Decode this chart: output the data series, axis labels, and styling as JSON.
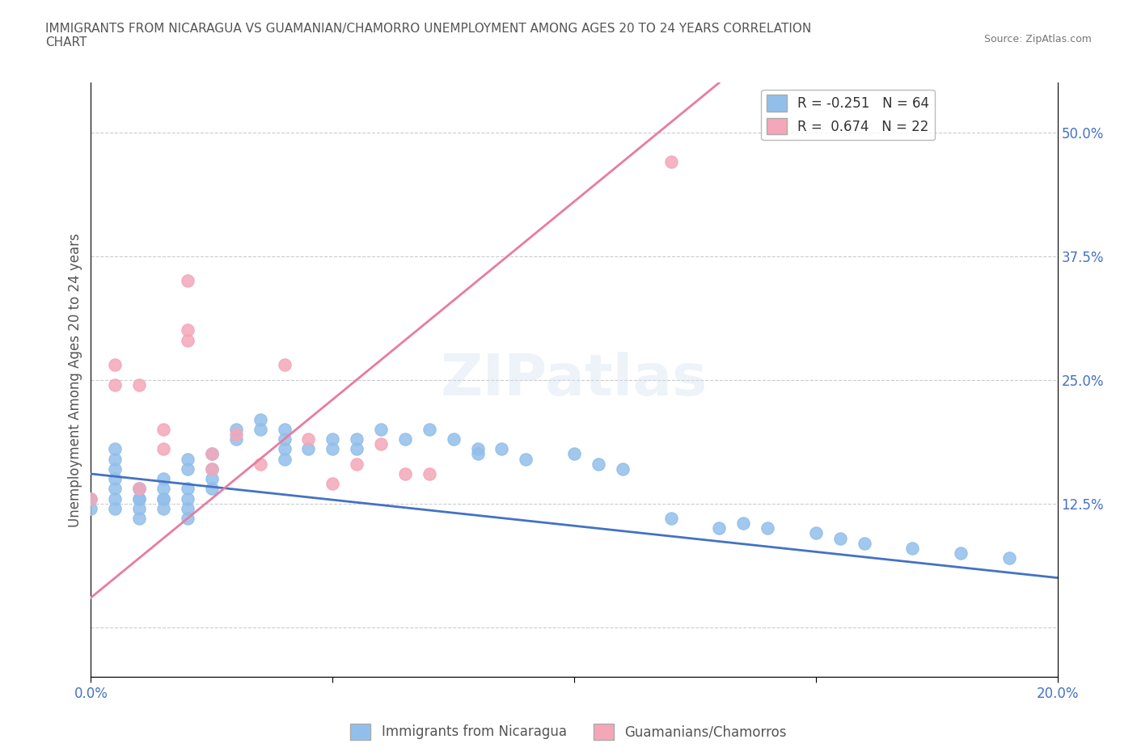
{
  "title": "IMMIGRANTS FROM NICARAGUA VS GUAMANIAN/CHAMORRO UNEMPLOYMENT AMONG AGES 20 TO 24 YEARS CORRELATION\nCHART",
  "source_text": "Source: ZipAtlas.com",
  "ylabel": "Unemployment Among Ages 20 to 24 years",
  "xlabel": "",
  "xlim": [
    0.0,
    0.2
  ],
  "ylim": [
    -0.05,
    0.55
  ],
  "yticks": [
    0.0,
    0.125,
    0.25,
    0.375,
    0.5
  ],
  "ytick_labels": [
    "",
    "12.5%",
    "25.0%",
    "37.5%",
    "50.0%"
  ],
  "xticks": [
    0.0,
    0.05,
    0.1,
    0.15,
    0.2
  ],
  "xtick_labels": [
    "0.0%",
    "",
    "",
    "",
    "20.0%"
  ],
  "blue_R": -0.251,
  "blue_N": 64,
  "pink_R": 0.674,
  "pink_N": 22,
  "blue_color": "#92BFEA",
  "pink_color": "#F4A7B9",
  "blue_line_color": "#4472C4",
  "pink_line_color": "#E87CA0",
  "legend_blue_label": "R = -0.251   N = 64",
  "legend_pink_label": "R =  0.674   N = 22",
  "watermark": "ZIPatlas",
  "blue_scatter_x": [
    0.0,
    0.0,
    0.01,
    0.01,
    0.01,
    0.01,
    0.015,
    0.015,
    0.015,
    0.02,
    0.02,
    0.02,
    0.02,
    0.025,
    0.025,
    0.025,
    0.03,
    0.03,
    0.035,
    0.035,
    0.04,
    0.04,
    0.04,
    0.04,
    0.045,
    0.05,
    0.05,
    0.055,
    0.055,
    0.06,
    0.065,
    0.07,
    0.075,
    0.08,
    0.08,
    0.085,
    0.09,
    0.1,
    0.105,
    0.11,
    0.12,
    0.13,
    0.135,
    0.14,
    0.15,
    0.155,
    0.16,
    0.17,
    0.18,
    0.19,
    0.005,
    0.005,
    0.005,
    0.005,
    0.005,
    0.005,
    0.005,
    0.01,
    0.01,
    0.015,
    0.015,
    0.02,
    0.02,
    0.025
  ],
  "blue_scatter_y": [
    0.13,
    0.12,
    0.14,
    0.13,
    0.12,
    0.11,
    0.15,
    0.14,
    0.13,
    0.14,
    0.13,
    0.12,
    0.11,
    0.16,
    0.15,
    0.14,
    0.2,
    0.19,
    0.21,
    0.2,
    0.2,
    0.19,
    0.18,
    0.17,
    0.18,
    0.19,
    0.18,
    0.19,
    0.18,
    0.2,
    0.19,
    0.2,
    0.19,
    0.18,
    0.175,
    0.18,
    0.17,
    0.175,
    0.165,
    0.16,
    0.11,
    0.1,
    0.105,
    0.1,
    0.095,
    0.09,
    0.085,
    0.08,
    0.075,
    0.07,
    0.13,
    0.14,
    0.12,
    0.15,
    0.16,
    0.17,
    0.18,
    0.14,
    0.13,
    0.13,
    0.12,
    0.17,
    0.16,
    0.175
  ],
  "pink_scatter_x": [
    0.0,
    0.005,
    0.005,
    0.01,
    0.01,
    0.015,
    0.015,
    0.02,
    0.02,
    0.02,
    0.025,
    0.025,
    0.03,
    0.035,
    0.04,
    0.045,
    0.05,
    0.055,
    0.06,
    0.065,
    0.07,
    0.12
  ],
  "pink_scatter_y": [
    0.13,
    0.245,
    0.265,
    0.14,
    0.245,
    0.2,
    0.18,
    0.3,
    0.35,
    0.29,
    0.175,
    0.16,
    0.195,
    0.165,
    0.265,
    0.19,
    0.145,
    0.165,
    0.185,
    0.155,
    0.155,
    0.47
  ],
  "blue_trend_x": [
    0.0,
    0.2
  ],
  "blue_trend_y": [
    0.155,
    0.05
  ],
  "pink_trend_x": [
    0.0,
    0.13
  ],
  "pink_trend_y": [
    0.03,
    0.55
  ],
  "background_color": "#FFFFFF",
  "grid_color": "#CCCCCC"
}
